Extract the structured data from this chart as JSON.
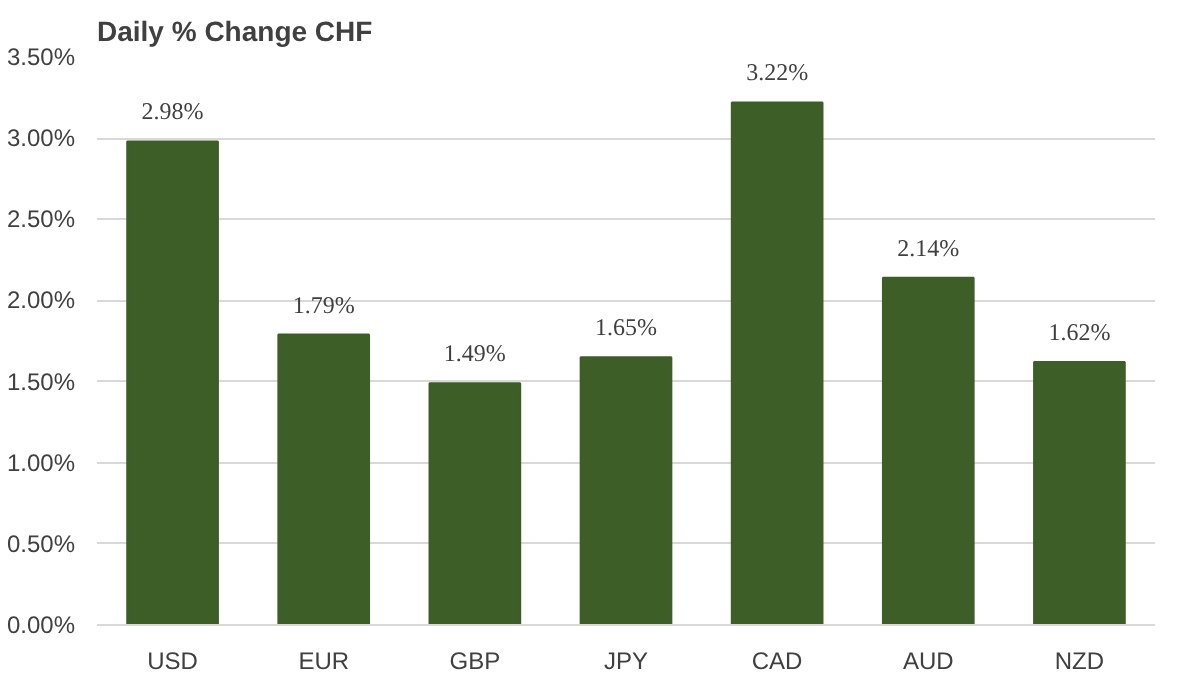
{
  "chart_data": {
    "type": "bar",
    "title": "Daily % Change CHF",
    "categories": [
      "USD",
      "EUR",
      "GBP",
      "JPY",
      "CAD",
      "AUD",
      "NZD"
    ],
    "values": [
      2.98,
      1.79,
      1.49,
      1.65,
      3.22,
      2.14,
      1.62
    ],
    "value_labels": [
      "2.98%",
      "1.79%",
      "1.49%",
      "1.65%",
      "3.22%",
      "2.14%",
      "1.62%"
    ],
    "color": "#3d5e27",
    "ylim": [
      0,
      3.5
    ],
    "yticks": [
      {
        "value": 0,
        "label": "0.00%"
      },
      {
        "value": 0.5,
        "label": "0.50%"
      },
      {
        "value": 1,
        "label": "1.00%"
      },
      {
        "value": 1.5,
        "label": "1.50%"
      },
      {
        "value": 2,
        "label": "2.00%"
      },
      {
        "value": 2.5,
        "label": "2.50%"
      },
      {
        "value": 3,
        "label": "3.00%"
      },
      {
        "value": 3.5,
        "label": "3.50%"
      }
    ],
    "grid": "y"
  }
}
